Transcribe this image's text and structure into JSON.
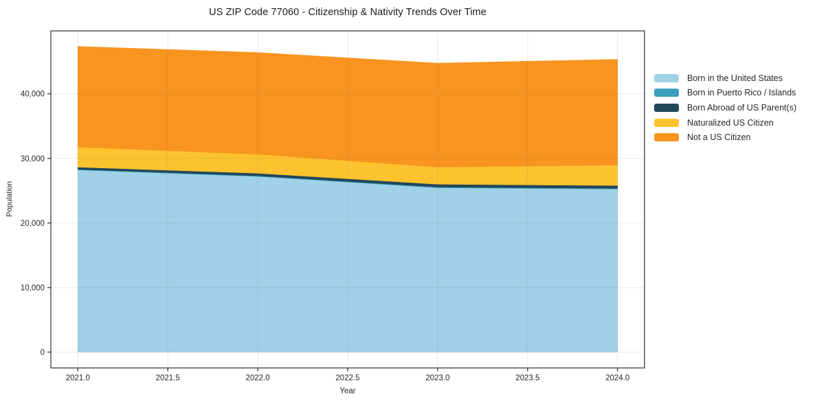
{
  "title": "US ZIP Code 77060 - Citizenship & Nativity Trends Over Time",
  "chart_data": {
    "type": "area",
    "stacked": true,
    "title": "US ZIP Code 77060 - Citizenship & Nativity Trends Over Time",
    "xlabel": "Year",
    "ylabel": "Population",
    "x": [
      2021,
      2022,
      2023,
      2024
    ],
    "series": [
      {
        "name": "Born in the United States",
        "color": "#a1d1e7",
        "values": [
          28200,
          27200,
          25450,
          25250
        ]
      },
      {
        "name": "Born in Puerto Rico / Islands",
        "color": "#3d9fc0",
        "values": [
          100,
          100,
          100,
          100
        ]
      },
      {
        "name": "Born Abroad of US Parent(s)",
        "color": "#224759",
        "values": [
          350,
          400,
          450,
          450
        ]
      },
      {
        "name": "Naturalized US Citizen",
        "color": "#fdc32e",
        "values": [
          3100,
          2950,
          2650,
          3150
        ]
      },
      {
        "name": "Not a US Citizen",
        "color": "#f8941f",
        "values": [
          15600,
          15750,
          16100,
          16400
        ]
      }
    ],
    "totals": [
      47350,
      46400,
      44750,
      45350
    ],
    "x_ticks": [
      2021.0,
      2021.5,
      2022.0,
      2022.5,
      2023.0,
      2023.5,
      2024.0
    ],
    "x_tick_labels": [
      "2021.0",
      "2021.5",
      "2022.0",
      "2022.5",
      "2023.0",
      "2023.5",
      "2024.0"
    ],
    "y_ticks": [
      0,
      10000,
      20000,
      30000,
      40000
    ],
    "y_tick_labels": [
      "0",
      "10,000",
      "20,000",
      "30,000",
      "40,000"
    ],
    "xlim": [
      2020.85,
      2024.15
    ],
    "ylim": [
      -2450,
      49750
    ],
    "grid": true,
    "legend_position": "right",
    "colors": {
      "spine": "#2b2b2b",
      "grid": "rgba(110,110,110,0.16)",
      "tick_text": "#262626",
      "background": "#ffffff"
    }
  }
}
